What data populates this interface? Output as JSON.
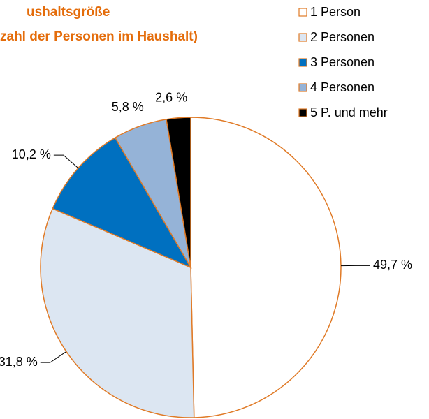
{
  "chart_data": {
    "type": "pie",
    "title": "ushaltsgröße",
    "subtitle": "zahl der Personen im Haushalt)",
    "categories": [
      "1 Person",
      "2 Personen",
      "3 Personen",
      "4 Personen",
      "5 P. und mehr"
    ],
    "values": [
      49.7,
      31.8,
      10.2,
      5.8,
      2.6
    ],
    "value_labels": [
      "49,7 %",
      "31,8 %",
      "10,2 %",
      "5,8 %",
      "2,6 %"
    ],
    "colors": [
      "#ffffff",
      "#dce6f2",
      "#0070c0",
      "#95b3d7",
      "#000000"
    ],
    "edge_color": "#e07a26",
    "legend": "top-right"
  }
}
